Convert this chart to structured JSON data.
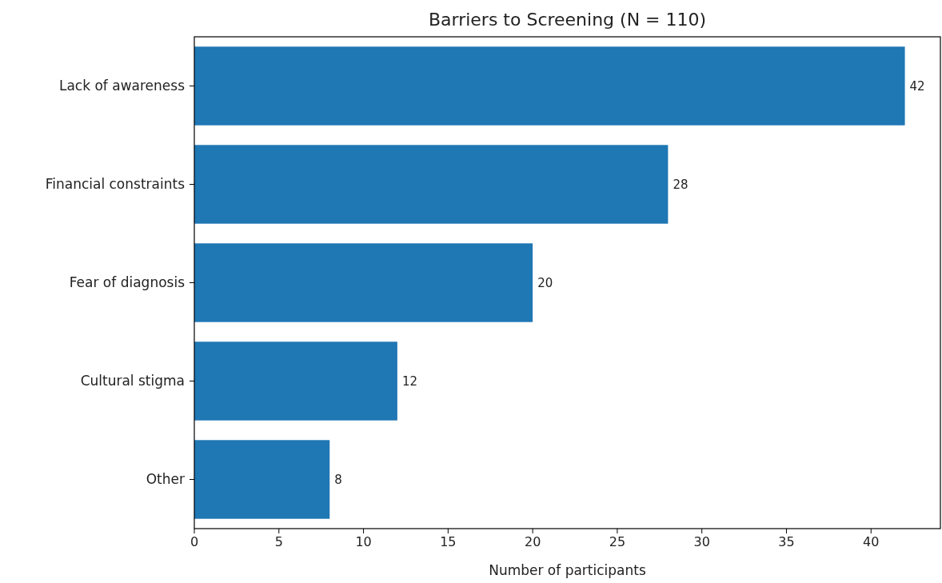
{
  "chart_data": {
    "type": "bar",
    "orientation": "horizontal",
    "title": "Barriers to Screening (N = 110)",
    "xlabel": "Number of participants",
    "categories": [
      "Lack of awareness",
      "Financial constraints",
      "Fear of diagnosis",
      "Cultural stigma",
      "Other"
    ],
    "values": [
      42,
      28,
      20,
      12,
      8
    ],
    "color": "#1f77b4",
    "data_labels": true,
    "xlim": [
      0,
      44.1
    ],
    "xticks": [
      0,
      5,
      10,
      15,
      20,
      25,
      30,
      35,
      40
    ]
  }
}
